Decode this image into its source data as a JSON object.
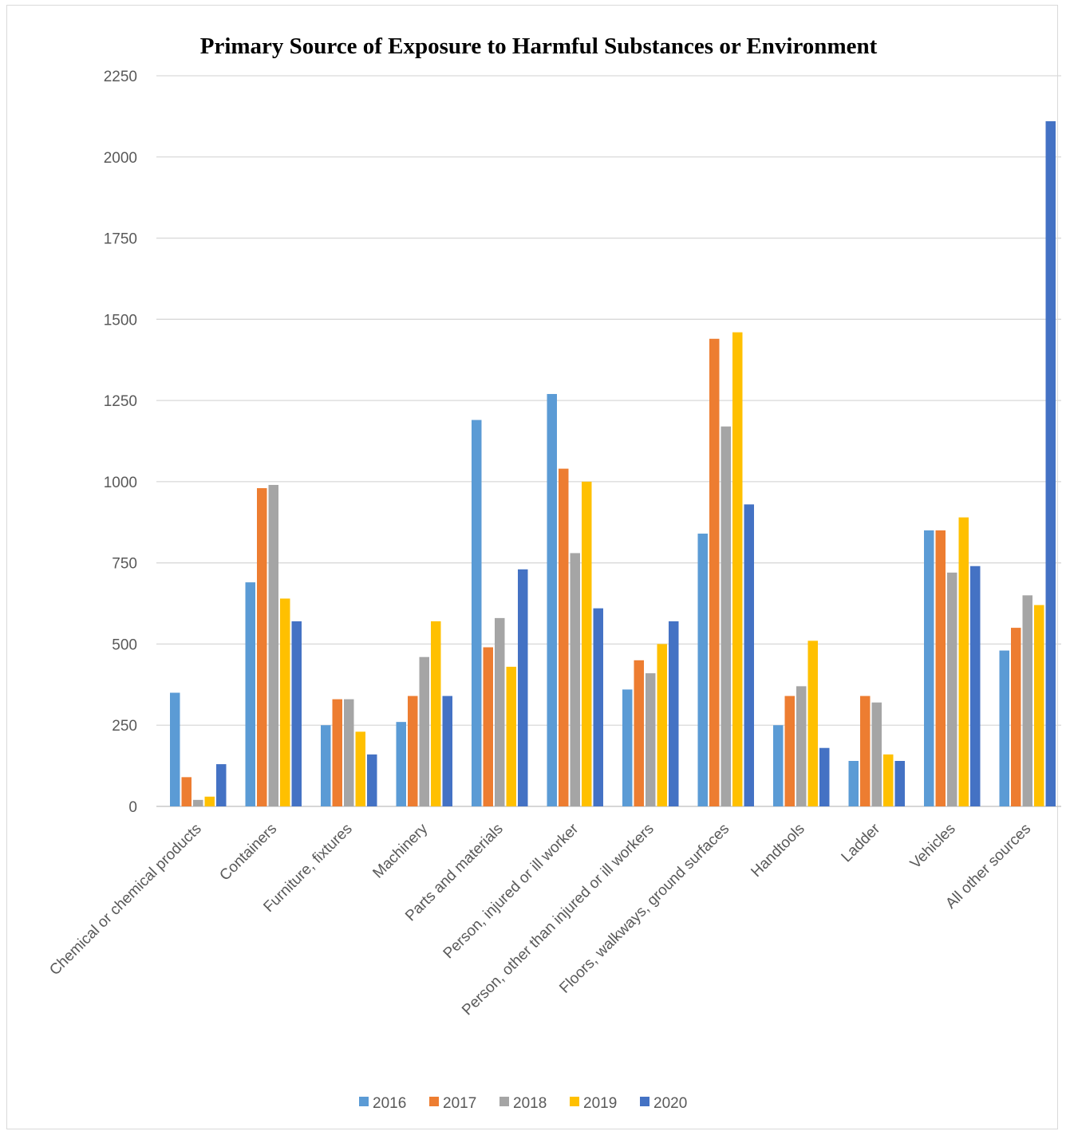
{
  "chart_data": {
    "type": "bar",
    "title": "Primary Source of Exposure to Harmful Substances or Environment",
    "xlabel": "",
    "ylabel": "",
    "ylim": [
      0,
      2250
    ],
    "yticks": [
      0,
      250,
      500,
      750,
      1000,
      1250,
      1500,
      1750,
      2000,
      2250
    ],
    "grid": true,
    "legend_position": "bottom",
    "categories": [
      "Chemical or chemical products",
      "Containers",
      "Furniture, fixtures",
      "Machinery",
      "Parts and materials",
      "Person, injured or ill worker",
      "Person, other than injured or ill workers",
      "Floors, walkways, ground surfaces",
      "Handtools",
      "Ladder",
      "Vehicles",
      "All other sources"
    ],
    "series": [
      {
        "name": "2016",
        "color": "#5b9bd5",
        "values": [
          350,
          690,
          250,
          260,
          1190,
          1270,
          360,
          840,
          250,
          140,
          850,
          480
        ]
      },
      {
        "name": "2017",
        "color": "#ed7d31",
        "values": [
          90,
          980,
          330,
          340,
          490,
          1040,
          450,
          1440,
          340,
          340,
          850,
          550
        ]
      },
      {
        "name": "2018",
        "color": "#a5a5a5",
        "values": [
          20,
          990,
          330,
          460,
          580,
          780,
          410,
          1170,
          370,
          320,
          720,
          650
        ]
      },
      {
        "name": "2019",
        "color": "#ffc000",
        "values": [
          30,
          640,
          230,
          570,
          430,
          1000,
          500,
          1460,
          510,
          160,
          890,
          620
        ]
      },
      {
        "name": "2020",
        "color": "#4472c4",
        "values": [
          130,
          570,
          160,
          340,
          730,
          610,
          570,
          930,
          180,
          140,
          740,
          2110
        ]
      }
    ]
  }
}
